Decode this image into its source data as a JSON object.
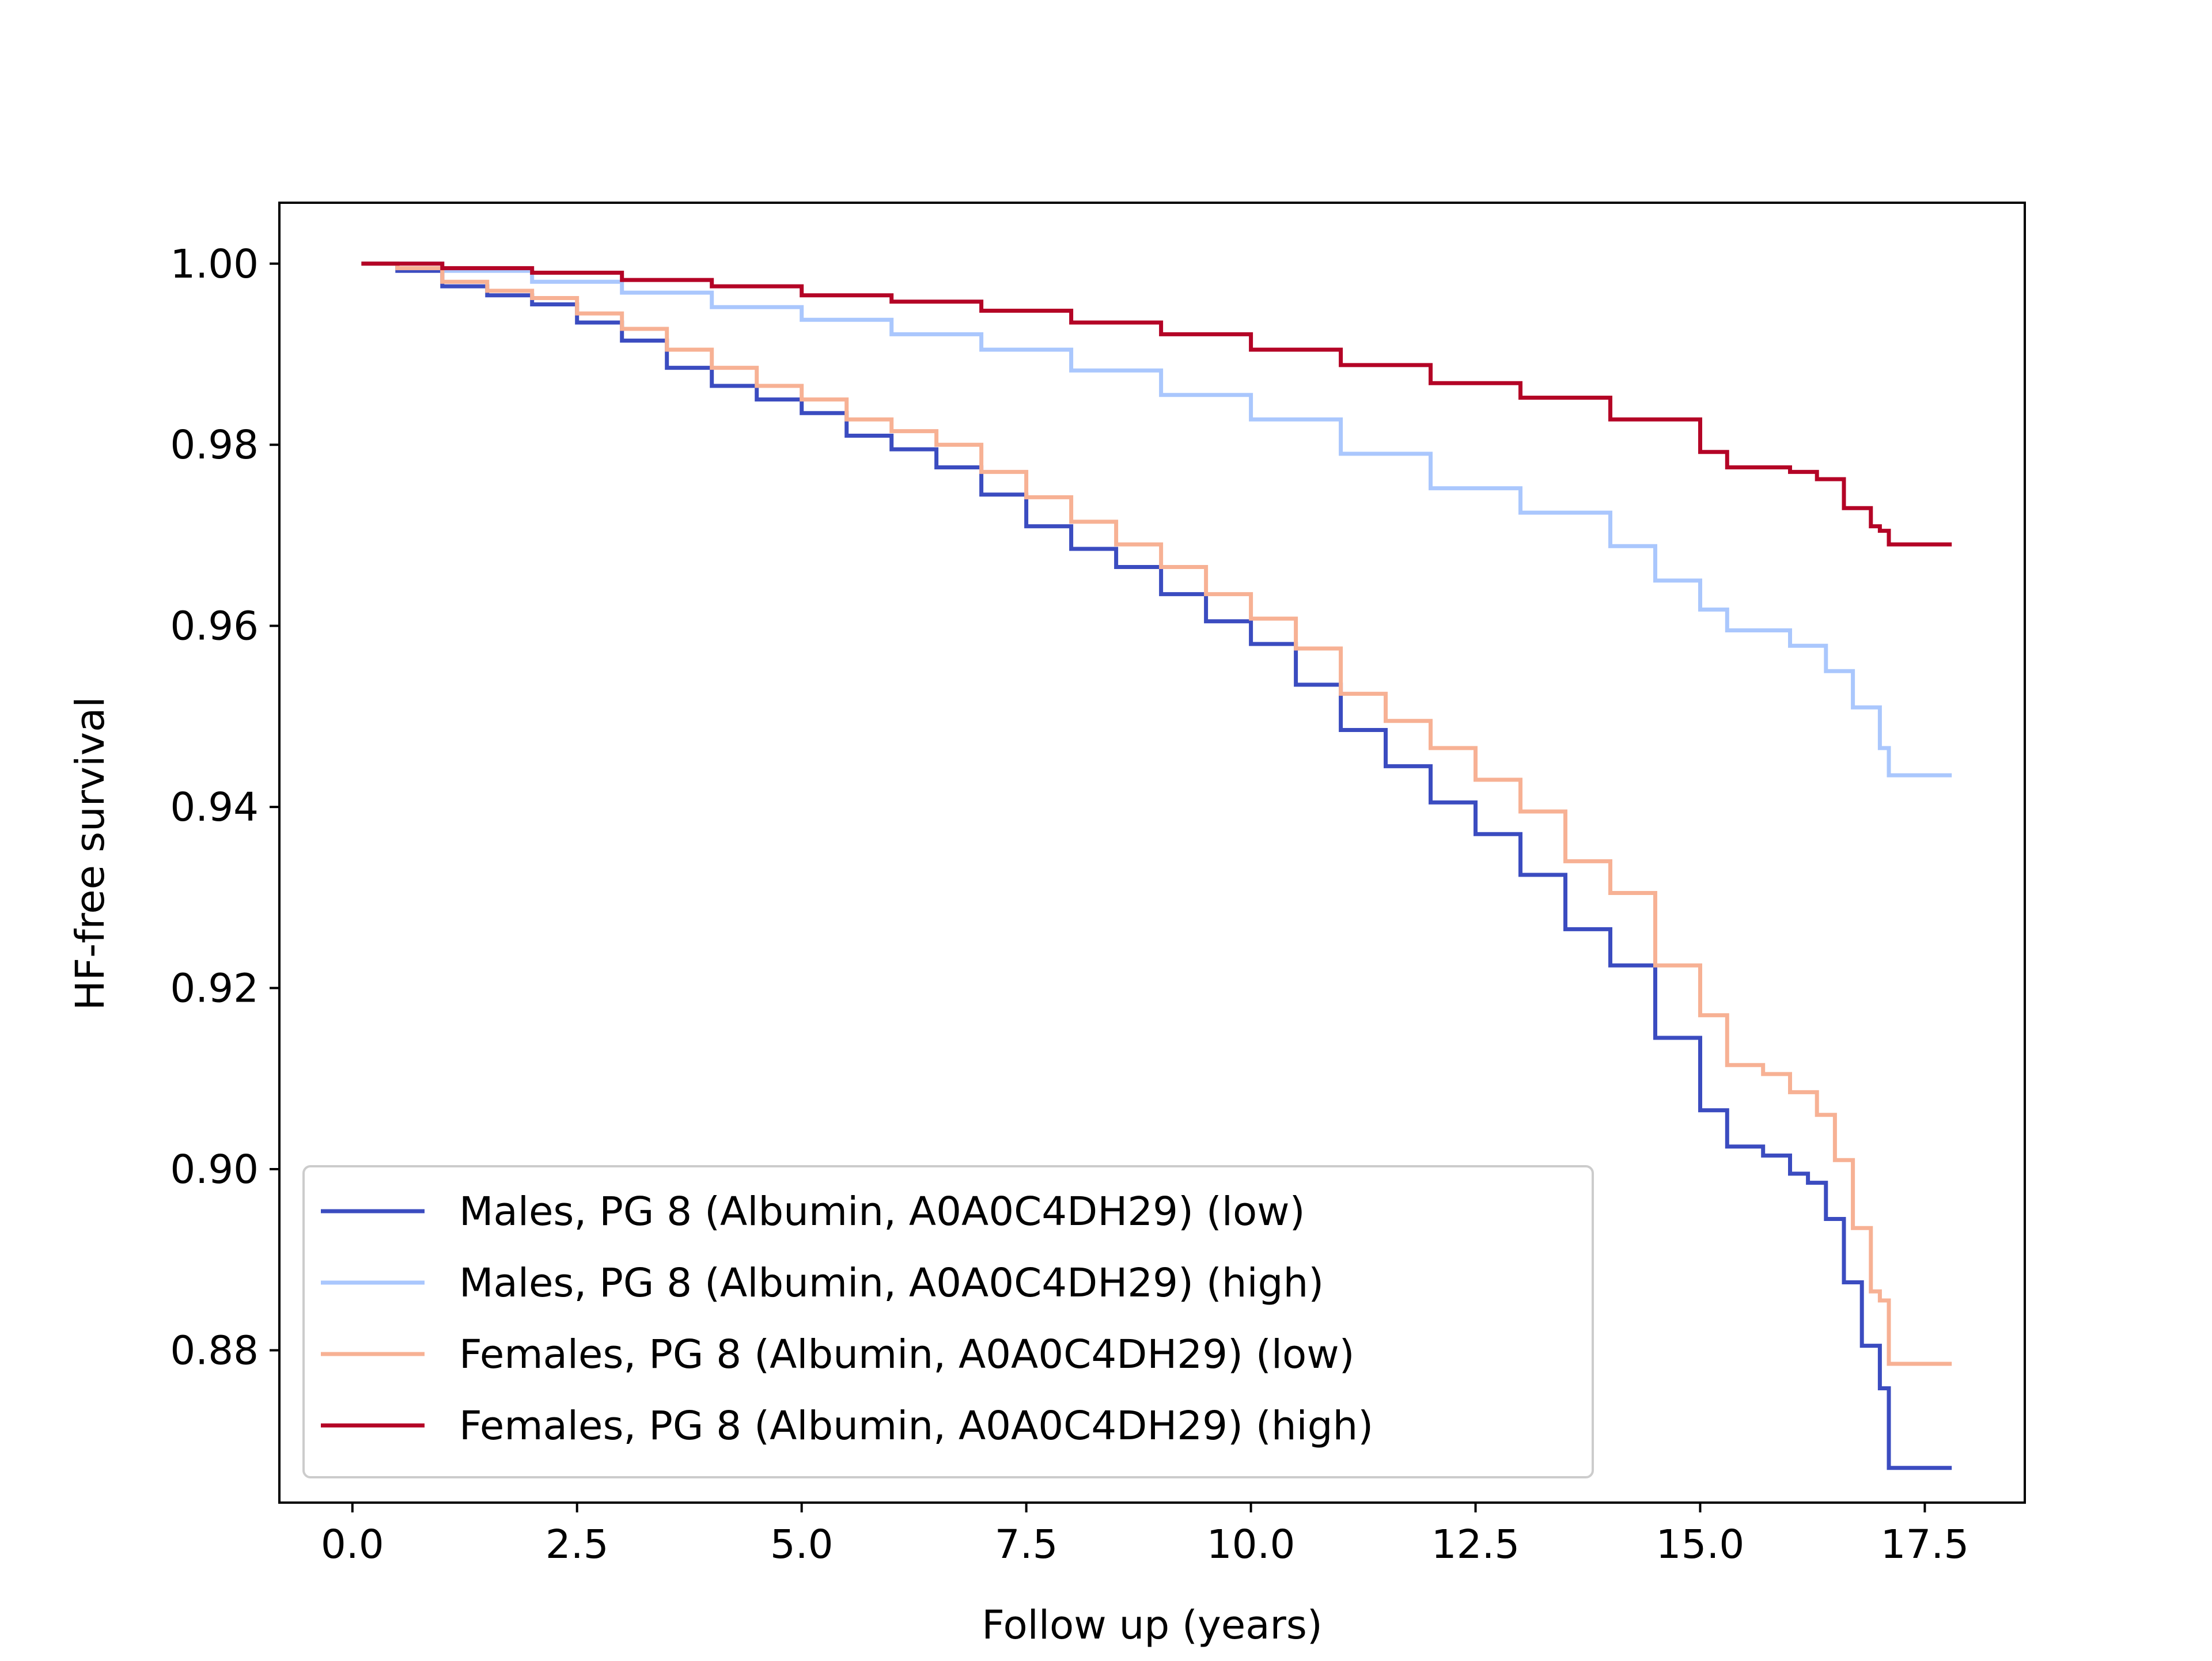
{
  "chart_data": {
    "type": "line",
    "title": "",
    "xlabel": "Follow up (years)",
    "ylabel": "HF-free survival",
    "xlim": [
      -0.8,
      18.6
    ],
    "ylim": [
      0.8633,
      1.0066
    ],
    "x_ticks": [
      0.0,
      2.5,
      5.0,
      7.5,
      10.0,
      12.5,
      15.0,
      17.5
    ],
    "x_tick_labels": [
      "0.0",
      "2.5",
      "5.0",
      "7.5",
      "10.0",
      "12.5",
      "15.0",
      "17.5"
    ],
    "y_ticks": [
      0.88,
      0.9,
      0.92,
      0.94,
      0.96,
      0.98,
      1.0
    ],
    "y_tick_labels": [
      "0.88",
      "0.90",
      "0.92",
      "0.94",
      "0.96",
      "0.98",
      "1.00"
    ],
    "grid": false,
    "legend_position": "lower-left",
    "step": true,
    "series": [
      {
        "name": "Males, PG 8 (Albumin, A0A0C4DH29) (low)",
        "color": "#3b4cc0",
        "x": [
          0.1,
          0.5,
          1.0,
          1.5,
          2.0,
          2.5,
          3.0,
          3.5,
          4.0,
          4.5,
          5.0,
          5.5,
          6.0,
          6.5,
          7.0,
          7.5,
          8.0,
          8.5,
          9.0,
          9.5,
          10.0,
          10.5,
          11.0,
          11.5,
          12.0,
          12.5,
          13.0,
          13.5,
          14.0,
          14.5,
          15.0,
          15.3,
          15.7,
          16.0,
          16.2,
          16.4,
          16.6,
          16.8,
          17.0,
          17.1,
          17.8
        ],
        "y": [
          1.0,
          0.9992,
          0.9975,
          0.9965,
          0.9955,
          0.9935,
          0.9915,
          0.9885,
          0.9865,
          0.985,
          0.9835,
          0.981,
          0.9795,
          0.9775,
          0.9745,
          0.971,
          0.9685,
          0.9665,
          0.9635,
          0.9605,
          0.958,
          0.9535,
          0.9485,
          0.9445,
          0.9405,
          0.937,
          0.9325,
          0.9265,
          0.9225,
          0.9145,
          0.9065,
          0.9025,
          0.9015,
          0.8995,
          0.8985,
          0.8945,
          0.8875,
          0.8805,
          0.8758,
          0.867,
          0.867
        ]
      },
      {
        "name": "Males, PG 8 (Albumin, A0A0C4DH29) (high)",
        "color": "#aac7fd",
        "x": [
          0.1,
          1.0,
          2.0,
          3.0,
          4.0,
          5.0,
          6.0,
          7.0,
          8.0,
          9.0,
          10.0,
          11.0,
          12.0,
          13.0,
          14.0,
          14.5,
          15.0,
          15.3,
          16.0,
          16.4,
          16.7,
          17.0,
          17.1,
          17.8
        ],
        "y": [
          1.0,
          0.9992,
          0.998,
          0.9968,
          0.9952,
          0.9938,
          0.9922,
          0.9905,
          0.9882,
          0.9855,
          0.9828,
          0.979,
          0.9752,
          0.9725,
          0.9688,
          0.965,
          0.9618,
          0.9595,
          0.9578,
          0.955,
          0.951,
          0.9465,
          0.9435,
          0.9435
        ]
      },
      {
        "name": "Females, PG 8 (Albumin, A0A0C4DH29) (low)",
        "color": "#f7b194",
        "x": [
          0.1,
          0.5,
          1.0,
          1.5,
          2.0,
          2.5,
          3.0,
          3.5,
          4.0,
          4.5,
          5.0,
          5.5,
          6.0,
          6.5,
          7.0,
          7.5,
          8.0,
          8.5,
          9.0,
          9.5,
          10.0,
          10.5,
          11.0,
          11.5,
          12.0,
          12.5,
          13.0,
          13.5,
          14.0,
          14.5,
          15.0,
          15.3,
          15.7,
          16.0,
          16.3,
          16.5,
          16.7,
          16.9,
          17.0,
          17.1,
          17.8
        ],
        "y": [
          1.0,
          0.9995,
          0.998,
          0.997,
          0.9962,
          0.9945,
          0.9928,
          0.9905,
          0.9885,
          0.9865,
          0.985,
          0.9828,
          0.9815,
          0.98,
          0.977,
          0.9742,
          0.9715,
          0.969,
          0.9665,
          0.9635,
          0.9608,
          0.9575,
          0.9525,
          0.9495,
          0.9465,
          0.943,
          0.9395,
          0.934,
          0.9305,
          0.9225,
          0.917,
          0.9115,
          0.9105,
          0.9085,
          0.906,
          0.901,
          0.8935,
          0.8865,
          0.8855,
          0.8785,
          0.8785
        ]
      },
      {
        "name": "Females, PG 8 (Albumin, A0A0C4DH29) (high)",
        "color": "#b40426",
        "x": [
          0.1,
          1.0,
          2.0,
          3.0,
          4.0,
          5.0,
          6.0,
          7.0,
          8.0,
          9.0,
          10.0,
          11.0,
          12.0,
          13.0,
          14.0,
          15.0,
          15.3,
          16.0,
          16.3,
          16.6,
          16.9,
          17.0,
          17.1,
          17.8
        ],
        "y": [
          1.0,
          0.9995,
          0.999,
          0.9982,
          0.9975,
          0.9965,
          0.9958,
          0.9948,
          0.9935,
          0.9922,
          0.9905,
          0.9888,
          0.9868,
          0.9852,
          0.9828,
          0.9792,
          0.9775,
          0.977,
          0.9762,
          0.973,
          0.971,
          0.9705,
          0.969,
          0.969
        ]
      }
    ]
  }
}
